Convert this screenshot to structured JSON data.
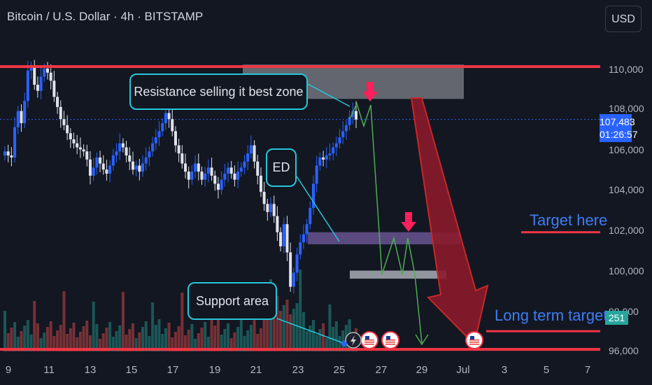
{
  "header": {
    "title": "Bitcoin / U.S. Dollar · 4h · BITSTAMP",
    "currency_button": "USD"
  },
  "price_tag": {
    "price": "107,483",
    "countdown": "01:26:57"
  },
  "volume_tag": {
    "value": "251"
  },
  "annotations": {
    "resistance": "Resistance selling it best zone",
    "ed": "ED",
    "support": "Support area",
    "target": "Target here",
    "long_term": "Long term target"
  },
  "colors": {
    "up": "#2962ff",
    "down": "#e0e3eb",
    "resistance_line": "#f23645",
    "projection": "#4caf50",
    "arrow_down": "#ff1744",
    "big_arrow": "#8b1a2b"
  },
  "chart_data": {
    "type": "candlestick",
    "title": "Bitcoin / U.S. Dollar · 4h · BITSTAMP",
    "ylim": [
      96000,
      111600
    ],
    "yticks": [
      "110,000",
      "108,000",
      "106,000",
      "104,000",
      "102,000",
      "100,000",
      "98,000",
      "96,000"
    ],
    "xticks": [
      "9",
      "11",
      "13",
      "15",
      "17",
      "19",
      "21",
      "23",
      "25",
      "27",
      "29",
      "Jul",
      "3",
      "5",
      "7"
    ],
    "last_price": 107483,
    "levels": {
      "resistance_line": 110100,
      "resistance_zone": [
        108500,
        110200
      ],
      "ed_zone": [
        101300,
        101900
      ],
      "target_zone": [
        99600,
        100000
      ],
      "target_here": 101900,
      "long_term_target": 97000,
      "support_line": 96100
    },
    "closes": [
      105900,
      105700,
      105600,
      107100,
      107900,
      107300,
      108400,
      109900,
      110100,
      109200,
      108900,
      109600,
      110000,
      109800,
      109400,
      108600,
      108100,
      107500,
      107200,
      106800,
      106500,
      106300,
      106100,
      106000,
      105900,
      105500,
      104700,
      105100,
      105600,
      105300,
      105000,
      104800,
      105200,
      105700,
      105900,
      106300,
      106100,
      105700,
      105400,
      105000,
      105200,
      104900,
      105300,
      105600,
      105900,
      106300,
      106600,
      106900,
      107300,
      107800,
      107500,
      106900,
      106200,
      105800,
      105300,
      104900,
      104500,
      104900,
      105300,
      104900,
      104500,
      104800,
      105100,
      104700,
      104300,
      104000,
      104500,
      104800,
      105100,
      104800,
      104500,
      104900,
      105100,
      105400,
      105800,
      106200,
      105400,
      104700,
      103900,
      103300,
      102900,
      103300,
      102700,
      101900,
      101200,
      102300,
      100900,
      99200,
      99900,
      100800,
      101400,
      101800,
      102300,
      103100,
      104300,
      105200,
      105600,
      105500,
      105700,
      105800,
      106100,
      106300,
      106600,
      106900,
      107200,
      107600,
      107900,
      107483
    ]
  }
}
